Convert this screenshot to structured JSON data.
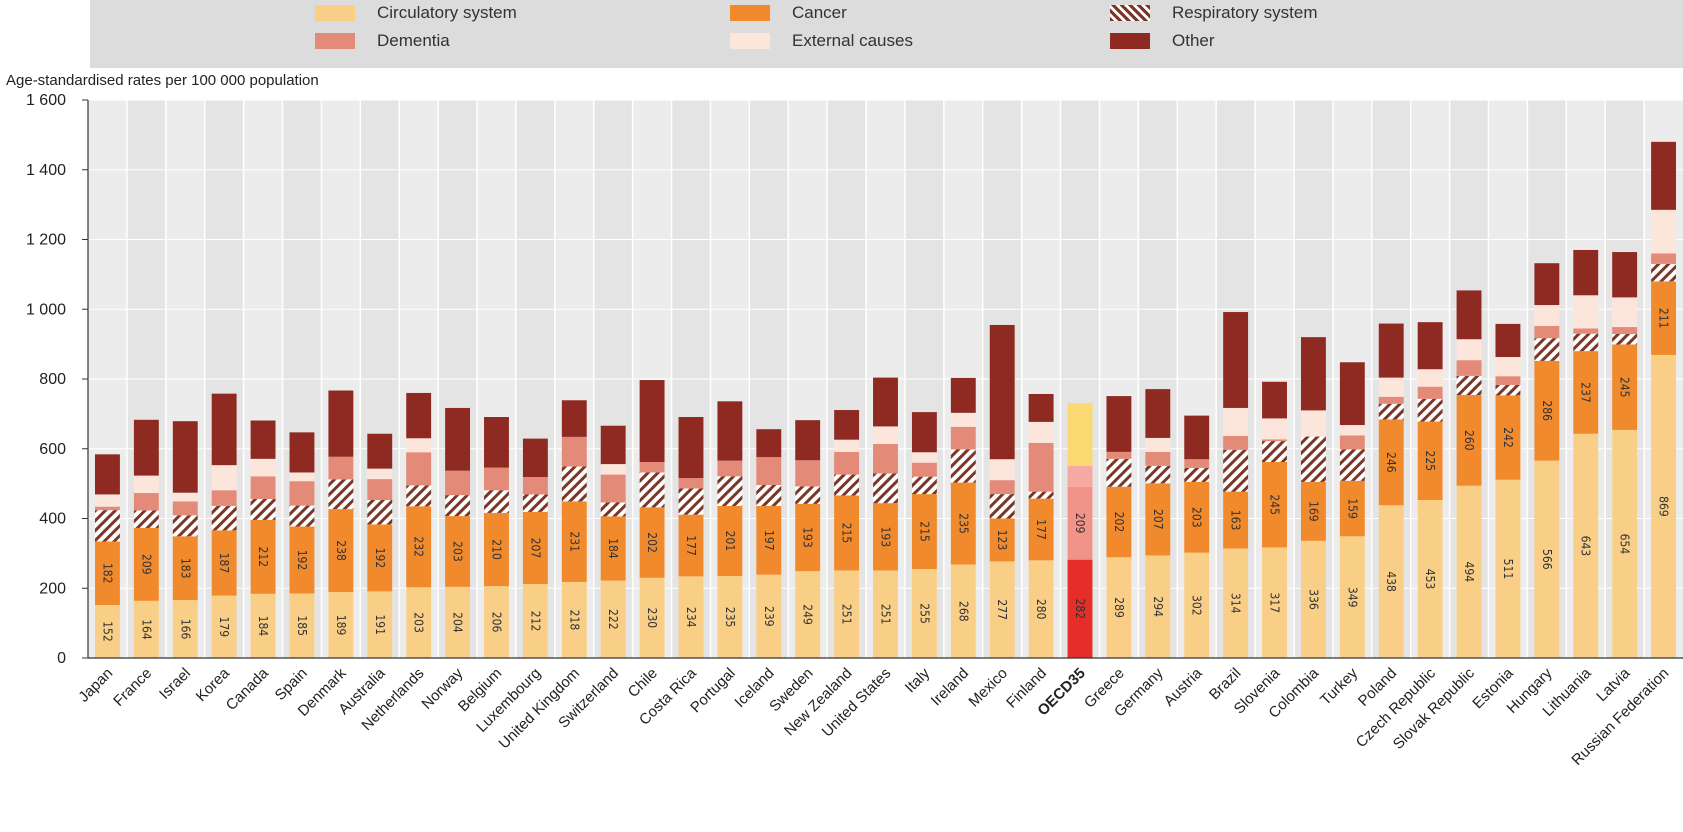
{
  "chart_data": {
    "type": "bar",
    "stacked": true,
    "ylabel": "Age-standardised rates per 100 000 population",
    "ylim": [
      0,
      1600
    ],
    "yticks": [
      0,
      200,
      400,
      600,
      800,
      1000,
      1200,
      1400,
      1600
    ],
    "ytick_labels": [
      "0",
      "200",
      "400",
      "600",
      "800",
      "1 000",
      "1 200",
      "1 400",
      "1 600"
    ],
    "grid": true,
    "legend_position": "top",
    "categories": [
      "Japan",
      "France",
      "Israel",
      "Korea",
      "Canada",
      "Spain",
      "Denmark",
      "Australia",
      "Netherlands",
      "Norway",
      "Belgium",
      "Luxembourg",
      "United Kingdom",
      "Switzerland",
      "Chile",
      "Costa Rica",
      "Portugal",
      "Iceland",
      "Sweden",
      "New Zealand",
      "United States",
      "Italy",
      "Ireland",
      "Mexico",
      "Finland",
      "OECD35",
      "Greece",
      "Germany",
      "Austria",
      "Brazil",
      "Slovenia",
      "Colombia",
      "Turkey",
      "Poland",
      "Czech Republic",
      "Slovak Republic",
      "Estonia",
      "Hungary",
      "Lithuania",
      "Latvia",
      "Russian Federation"
    ],
    "highlight_category": "OECD35",
    "series": [
      {
        "name": "Circulatory system",
        "color": "#f9cf87",
        "values": [
          152,
          164,
          166,
          179,
          184,
          185,
          189,
          191,
          203,
          204,
          206,
          212,
          218,
          222,
          230,
          234,
          235,
          239,
          249,
          251,
          251,
          255,
          268,
          277,
          280,
          282,
          289,
          294,
          302,
          314,
          317,
          336,
          349,
          438,
          453,
          494,
          511,
          566,
          643,
          654,
          869
        ]
      },
      {
        "name": "Cancer",
        "color": "#f08a2c",
        "values": [
          182,
          209,
          183,
          187,
          212,
          192,
          238,
          192,
          232,
          203,
          210,
          207,
          231,
          184,
          202,
          177,
          201,
          197,
          193,
          215,
          193,
          215,
          235,
          123,
          177,
          209,
          202,
          207,
          203,
          163,
          245,
          169,
          159,
          246,
          225,
          260,
          242,
          286,
          237,
          245,
          211
        ]
      },
      {
        "name": "Respiratory system",
        "color": "#7a3728",
        "pattern": "hatch",
        "values": [
          90,
          50,
          60,
          70,
          60,
          60,
          85,
          70,
          60,
          60,
          65,
          50,
          100,
          40,
          100,
          75,
          85,
          60,
          50,
          60,
          85,
          50,
          95,
          70,
          20,
          60,
          80,
          50,
          40,
          120,
          60,
          130,
          90,
          45,
          65,
          55,
          30,
          65,
          50,
          30,
          50
        ]
      },
      {
        "name": "Dementia",
        "color": "#e48a78",
        "values": [
          10,
          50,
          40,
          45,
          65,
          70,
          65,
          60,
          95,
          70,
          65,
          50,
          85,
          80,
          30,
          30,
          45,
          80,
          75,
          65,
          85,
          40,
          65,
          40,
          140,
          0,
          20,
          40,
          25,
          40,
          5,
          0,
          40,
          20,
          35,
          45,
          25,
          35,
          15,
          20,
          30
        ]
      },
      {
        "name": "External causes",
        "color": "#fce6dc",
        "values": [
          35,
          50,
          25,
          72,
          50,
          25,
          0,
          30,
          40,
          0,
          0,
          0,
          0,
          30,
          0,
          0,
          0,
          0,
          0,
          35,
          50,
          30,
          40,
          60,
          60,
          0,
          0,
          40,
          0,
          80,
          60,
          75,
          30,
          55,
          50,
          60,
          55,
          60,
          95,
          85,
          125
        ]
      },
      {
        "name": "Other",
        "color": "#8e2a22",
        "values": [
          115,
          160,
          205,
          205,
          110,
          115,
          190,
          100,
          130,
          180,
          145,
          110,
          105,
          110,
          235,
          175,
          170,
          80,
          115,
          85,
          140,
          115,
          100,
          385,
          80,
          0,
          160,
          140,
          125,
          275,
          105,
          210,
          180,
          155,
          135,
          140,
          95,
          120,
          130,
          130,
          195
        ]
      }
    ],
    "oecd35_colors": [
      "#e52e27",
      "#f2938a",
      "#f6a9a3",
      "#f8b829",
      "#fce7a9",
      "#fbd973"
    ],
    "oecd35_top_segment": 180,
    "labeled_series": [
      "Circulatory system",
      "Cancer"
    ]
  }
}
